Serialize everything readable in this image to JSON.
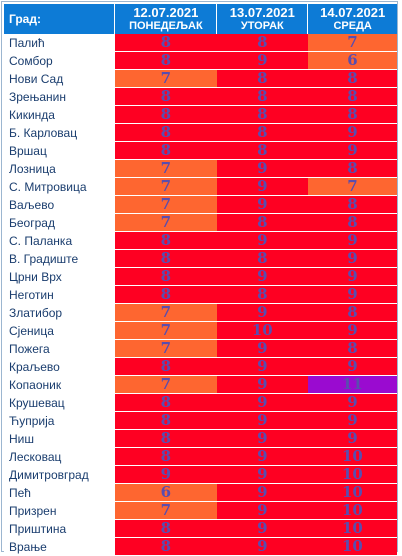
{
  "header": {
    "city_label": "Град:",
    "days": [
      {
        "date": "12.07.2021",
        "weekday": "ПОНЕДЕЉАК"
      },
      {
        "date": "13.07.2021",
        "weekday": "УТОРАК"
      },
      {
        "date": "14.07.2021",
        "weekday": "СРЕДА"
      }
    ]
  },
  "colors": {
    "red": "#fe0022",
    "orange": "#fe6630",
    "purple": "#9a0bd0",
    "header": "#0d7bd6"
  },
  "rows": [
    {
      "city": "Палић",
      "v": [
        "8",
        "8",
        "7"
      ],
      "c": [
        "red",
        "red",
        "orange"
      ]
    },
    {
      "city": "Сомбор",
      "v": [
        "8",
        "9",
        "6"
      ],
      "c": [
        "red",
        "red",
        "orange"
      ]
    },
    {
      "city": "Нови Сад",
      "v": [
        "7",
        "8",
        "8"
      ],
      "c": [
        "orange",
        "red",
        "red"
      ]
    },
    {
      "city": "Зрењанин",
      "v": [
        "8",
        "8",
        "8"
      ],
      "c": [
        "red",
        "red",
        "red"
      ]
    },
    {
      "city": "Кикинда",
      "v": [
        "8",
        "8",
        "8"
      ],
      "c": [
        "red",
        "red",
        "red"
      ]
    },
    {
      "city": "Б. Карловац",
      "v": [
        "8",
        "8",
        "9"
      ],
      "c": [
        "red",
        "red",
        "red"
      ]
    },
    {
      "city": "Вршац",
      "v": [
        "8",
        "8",
        "9"
      ],
      "c": [
        "red",
        "red",
        "red"
      ]
    },
    {
      "city": "Лозница",
      "v": [
        "7",
        "9",
        "8"
      ],
      "c": [
        "orange",
        "red",
        "red"
      ]
    },
    {
      "city": "С. Митровица",
      "v": [
        "7",
        "9",
        "7"
      ],
      "c": [
        "orange",
        "red",
        "orange"
      ]
    },
    {
      "city": "Ваљево",
      "v": [
        "7",
        "9",
        "8"
      ],
      "c": [
        "orange",
        "red",
        "red"
      ]
    },
    {
      "city": "Београд",
      "v": [
        "7",
        "8",
        "8"
      ],
      "c": [
        "orange",
        "red",
        "red"
      ]
    },
    {
      "city": "С. Паланка",
      "v": [
        "8",
        "9",
        "9"
      ],
      "c": [
        "red",
        "red",
        "red"
      ]
    },
    {
      "city": "В. Градиште",
      "v": [
        "8",
        "8",
        "9"
      ],
      "c": [
        "red",
        "red",
        "red"
      ]
    },
    {
      "city": "Црни Врх",
      "v": [
        "8",
        "9",
        "9"
      ],
      "c": [
        "red",
        "red",
        "red"
      ]
    },
    {
      "city": "Неготин",
      "v": [
        "8",
        "8",
        "9"
      ],
      "c": [
        "red",
        "red",
        "red"
      ]
    },
    {
      "city": "Златибор",
      "v": [
        "7",
        "9",
        "8"
      ],
      "c": [
        "orange",
        "red",
        "red"
      ]
    },
    {
      "city": "Сјеница",
      "v": [
        "7",
        "10",
        "9"
      ],
      "c": [
        "orange",
        "red",
        "red"
      ]
    },
    {
      "city": "Пожега",
      "v": [
        "7",
        "9",
        "8"
      ],
      "c": [
        "orange",
        "red",
        "red"
      ]
    },
    {
      "city": "Краљево",
      "v": [
        "8",
        "9",
        "9"
      ],
      "c": [
        "red",
        "red",
        "red"
      ]
    },
    {
      "city": "Копаоник",
      "v": [
        "7",
        "9",
        "11"
      ],
      "c": [
        "orange",
        "red",
        "purple"
      ]
    },
    {
      "city": "Крушевац",
      "v": [
        "8",
        "9",
        "9"
      ],
      "c": [
        "red",
        "red",
        "red"
      ]
    },
    {
      "city": "Ћуприја",
      "v": [
        "8",
        "9",
        "9"
      ],
      "c": [
        "red",
        "red",
        "red"
      ]
    },
    {
      "city": "Ниш",
      "v": [
        "8",
        "9",
        "9"
      ],
      "c": [
        "red",
        "red",
        "red"
      ]
    },
    {
      "city": "Лесковац",
      "v": [
        "8",
        "9",
        "10"
      ],
      "c": [
        "red",
        "red",
        "red"
      ]
    },
    {
      "city": "Димитровград",
      "v": [
        "9",
        "9",
        "10"
      ],
      "c": [
        "red",
        "red",
        "red"
      ]
    },
    {
      "city": "Пећ",
      "v": [
        "6",
        "9",
        "10"
      ],
      "c": [
        "orange",
        "red",
        "red"
      ]
    },
    {
      "city": "Призрен",
      "v": [
        "7",
        "9",
        "10"
      ],
      "c": [
        "orange",
        "red",
        "red"
      ]
    },
    {
      "city": "Приштина",
      "v": [
        "8",
        "9",
        "10"
      ],
      "c": [
        "red",
        "red",
        "red"
      ]
    },
    {
      "city": "Врање",
      "v": [
        "8",
        "9",
        "10"
      ],
      "c": [
        "red",
        "red",
        "red"
      ]
    }
  ]
}
